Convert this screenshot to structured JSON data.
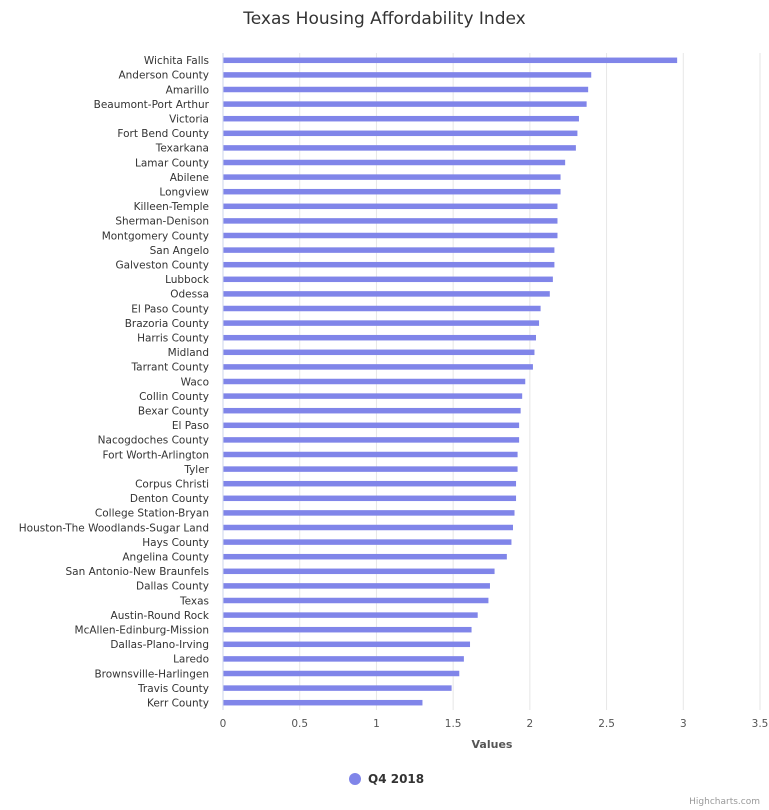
{
  "chart_data": {
    "type": "bar",
    "orientation": "horizontal",
    "title": "Texas Housing Affordability Index",
    "xlabel": "Values",
    "xlim": [
      0,
      3.5
    ],
    "ticks": [
      "0",
      "0.5",
      "1",
      "1.5",
      "2",
      "2.5",
      "3",
      "3.5"
    ],
    "tick_values": [
      0,
      0.5,
      1,
      1.5,
      2,
      2.5,
      3,
      3.5
    ],
    "grid": true,
    "legend_position": "bottom",
    "credits": "Highcharts.com",
    "series": [
      {
        "name": "Q4 2018",
        "color": "#8085e9",
        "values": [
          2.96,
          2.4,
          2.38,
          2.37,
          2.32,
          2.31,
          2.3,
          2.23,
          2.2,
          2.2,
          2.18,
          2.18,
          2.18,
          2.16,
          2.16,
          2.15,
          2.13,
          2.07,
          2.06,
          2.04,
          2.03,
          2.02,
          1.97,
          1.95,
          1.94,
          1.93,
          1.93,
          1.92,
          1.92,
          1.91,
          1.91,
          1.9,
          1.89,
          1.88,
          1.85,
          1.77,
          1.74,
          1.73,
          1.66,
          1.62,
          1.61,
          1.57,
          1.54,
          1.49,
          1.3
        ]
      }
    ],
    "categories": [
      "Wichita Falls",
      "Anderson County",
      "Amarillo",
      "Beaumont-Port Arthur",
      "Victoria",
      "Fort Bend County",
      "Texarkana",
      "Lamar County",
      "Abilene",
      "Longview",
      "Killeen-Temple",
      "Sherman-Denison",
      "Montgomery County",
      "San Angelo",
      "Galveston County",
      "Lubbock",
      "Odessa",
      "El Paso County",
      "Brazoria County",
      "Harris County",
      "Midland",
      "Tarrant County",
      "Waco",
      "Collin County",
      "Bexar County",
      "El Paso",
      "Nacogdoches County",
      "Fort Worth-Arlington",
      "Tyler",
      "Corpus Christi",
      "Denton County",
      "College Station-Bryan",
      "Houston-The Woodlands-Sugar Land",
      "Hays County",
      "Angelina County",
      "San Antonio-New Braunfels",
      "Dallas County",
      "Texas",
      "Austin-Round Rock",
      "McAllen-Edinburg-Mission",
      "Dallas-Plano-Irving",
      "Laredo",
      "Brownsville-Harlingen",
      "Travis County",
      "Kerr County"
    ]
  }
}
